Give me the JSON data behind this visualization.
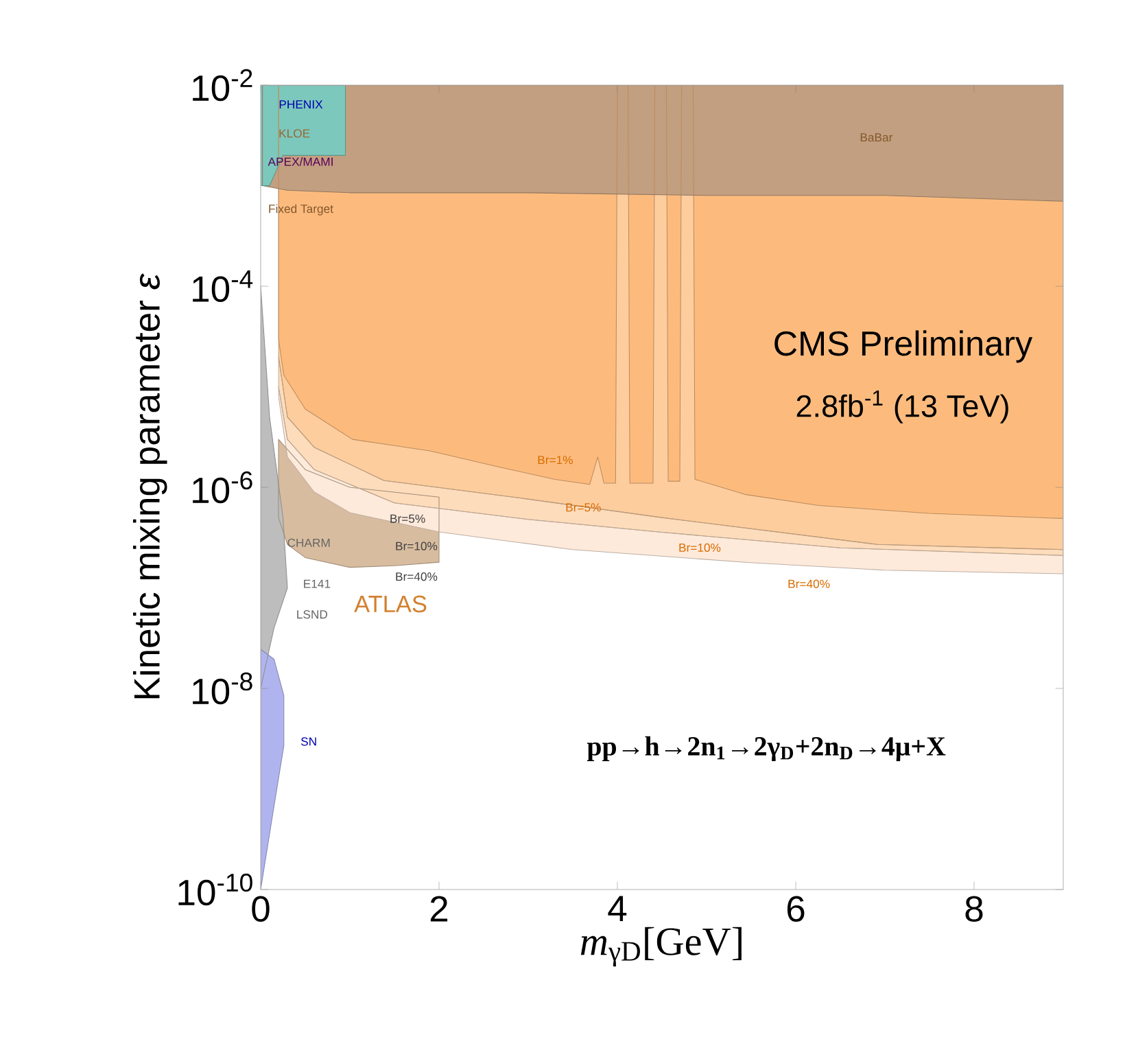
{
  "chart_data": {
    "type": "area",
    "xlabel": "*m*$_{γD}$[GeV]",
    "ylabel": "Kinetic mixing parameter *ε*",
    "log": "y",
    "xlim": [
      0,
      9
    ],
    "ylim": [
      1e-10,
      0.01
    ],
    "xticks": [
      0,
      2,
      4,
      6,
      8
    ],
    "yticks": [
      {
        "value": 1e-10,
        "label": "10$^{-10}$"
      },
      {
        "value": 1e-08,
        "label": "10$^{-8}$"
      },
      {
        "value": 1e-06,
        "label": "10$^{-6}$"
      },
      {
        "value": 0.0001,
        "label": "10$^{-4}$"
      },
      {
        "value": 0.01,
        "label": "10$^{-2}$"
      }
    ],
    "series": [
      {
        "color": "#d8bc9f",
        "x": [
          0.2,
          0.5,
          1,
          2,
          2,
          1.5,
          1,
          0.5,
          0.3,
          0.2
        ],
        "values": [
          3e-06,
          1.5e-06,
          1e-06,
          8e-07,
          1.8e-07,
          1.66e-07,
          1.6e-07,
          2e-07,
          2.7e-07,
          5e-07
        ]
      },
      {
        "color": "#feeadb",
        "x": [
          0.2,
          0.3,
          0.6,
          1.0,
          2,
          3.5,
          5.49,
          7,
          9,
          9,
          6.5,
          4.46,
          3,
          1.5,
          0.6,
          0.3,
          0.2
        ],
        "values": [
          8e-06,
          2e-06,
          9e-07,
          5.6e-07,
          3.6e-07,
          2.4e-07,
          1.78e-07,
          1.5e-07,
          1.38e-07,
          2.1e-07,
          2.5e-07,
          3.6e-07,
          4.8e-07,
          7e-07,
          1.5e-06,
          3e-06,
          1e-05
        ]
      },
      {
        "color": "#fddcbc",
        "x": [
          0.2,
          0.3,
          0.6,
          1.5,
          3,
          4.46,
          6.5,
          9,
          9,
          6.92,
          4.5,
          2.92,
          1.38,
          0.6,
          0.3,
          0.2
        ],
        "values": [
          1e-05,
          3e-06,
          1.5e-06,
          7e-07,
          4.8e-07,
          3.6e-07,
          2.5e-07,
          2.1e-07,
          2.4e-07,
          2.7e-07,
          5e-07,
          7.8e-07,
          1.17e-06,
          2.5e-06,
          5e-06,
          2e-05
        ]
      },
      {
        "color": "#fdcd9e",
        "x": [
          0.2,
          0.3,
          0.6,
          1.38,
          2.92,
          4.5,
          6.92,
          9,
          9,
          0.2
        ],
        "values": [
          2e-05,
          5e-06,
          2.5e-06,
          1.17e-06,
          7.8e-07,
          5e-07,
          2.7e-07,
          2.4e-07,
          0.01,
          0.01
        ]
      },
      {
        "color": "#fcbb7d",
        "x": [
          0.2,
          0.2,
          0.26,
          0.5,
          1.03,
          1.5,
          1.9,
          2.66,
          3.3,
          3.69,
          3.78,
          3.85,
          3.98,
          4.0,
          4.12,
          4.14,
          4.4,
          4.42,
          4.55,
          4.57,
          4.7,
          4.72,
          4.85,
          4.87,
          5.43,
          6.26,
          7.5,
          9,
          9
        ],
        "values": [
          0.01,
          3e-05,
          1.3e-05,
          6e-06,
          3e-06,
          2.6e-06,
          2.3e-06,
          1.6e-06,
          1.2e-06,
          1.07e-06,
          2e-06,
          1.1e-06,
          1.1e-06,
          0.01,
          0.01,
          1.1e-06,
          1.1e-06,
          0.01,
          0.01,
          1.15e-06,
          1.15e-06,
          0.01,
          0.01,
          1.2e-06,
          8.5e-07,
          6.6e-07,
          5.5e-07,
          4.9e-07,
          0.01
        ]
      },
      {
        "color": "#c29f80",
        "x": [
          0.02,
          9,
          9,
          7,
          5,
          3,
          1,
          0.3,
          0.02
        ],
        "values": [
          0.01,
          0.01,
          0.0007,
          0.0008,
          0.0008,
          0.00085,
          0.00085,
          0.0009,
          0.001
        ]
      },
      {
        "color": "#7cc8bc",
        "x": [
          0,
          0.95,
          0.95,
          0.25,
          0.1,
          0
        ],
        "values": [
          0.01,
          0.01,
          0.002,
          0.002,
          0.001,
          0.001
        ]
      },
      {
        "color": "#bdbdbd",
        "x": [
          0,
          0.1,
          0.25,
          0.3,
          0.15,
          0.05,
          0
        ],
        "values": [
          0.0001,
          5e-06,
          5e-07,
          1e-07,
          4e-08,
          1.6e-08,
          1e-08
        ]
      },
      {
        "color": "#b0b4ee",
        "x": [
          0,
          0.15,
          0.26,
          0.26,
          0.15,
          0
        ],
        "values": [
          1e-10,
          6.8e-10,
          2.7e-09,
          8.5e-09,
          1.95e-08,
          2.45e-08
        ]
      }
    ],
    "annotations": [
      "CMS Preliminary",
      "2.8fb$^{-1}$ (13 TeV)",
      "**pp→h→2n$_{1}$→2γ$_{D}$+2n$_{D}$→4μ+X**",
      "BaBar",
      "PHENIX",
      "KLOE",
      "APEX/MAMI",
      "Fixed Target",
      "Br=1%",
      "Br=5%",
      "Br=10%",
      "Br=40%",
      "Br=5%",
      "Br=10%",
      "Br=40%",
      "ATLAS",
      "CHARM",
      "E141",
      "LSND",
      "SN"
    ]
  }
}
